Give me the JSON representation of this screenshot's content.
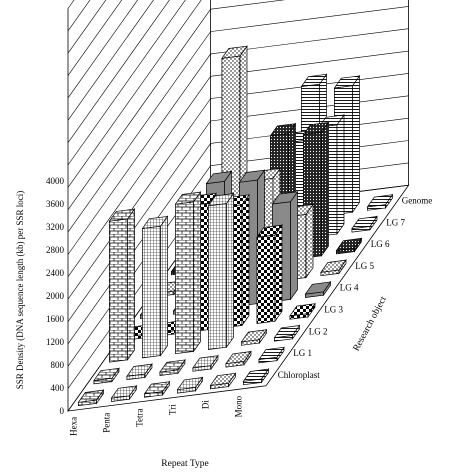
{
  "chart_data": {
    "type": "bar",
    "subtype": "3d-bar",
    "ylabel": "SSR Density (DNA sequence length (kb) per SSR loci)",
    "xlabel": "Repeat Type",
    "zlabel": "Research object",
    "ylim": [
      0,
      4000
    ],
    "yticks": [
      "0",
      "400",
      "800",
      "1200",
      "1600",
      "2000",
      "2400",
      "2800",
      "3200",
      "3600",
      "4000"
    ],
    "categories": [
      "Hexa",
      "Penta",
      "Tetra",
      "Tri",
      "Di",
      "Mono"
    ],
    "series": [
      {
        "name": "Chloroplast",
        "values": [
          0,
          0,
          0,
          0,
          0,
          0
        ]
      },
      {
        "name": "LG 1",
        "values": [
          0,
          0,
          0,
          0,
          0,
          0
        ]
      },
      {
        "name": "LG 2",
        "values": [
          2450,
          2250,
          2600,
          2500,
          0,
          0
        ]
      },
      {
        "name": "LG 3",
        "values": [
          0,
          0,
          2200,
          2100,
          1500,
          0
        ]
      },
      {
        "name": "LG 4",
        "values": [
          0,
          0,
          2200,
          2150,
          1700,
          0
        ]
      },
      {
        "name": "LG 5",
        "values": [
          0,
          0,
          4000,
          1800,
          1100,
          0
        ]
      },
      {
        "name": "LG 6",
        "values": [
          0,
          0,
          0,
          2200,
          2150,
          0
        ]
      },
      {
        "name": "LG 7",
        "values": [
          0,
          0,
          0,
          1700,
          1900,
          0
        ]
      },
      {
        "name": "Genome",
        "values": [
          0,
          0,
          0,
          2300,
          2200,
          0
        ]
      }
    ],
    "grid": true,
    "legend": "none"
  },
  "colors": {
    "axis": "#000000",
    "grid": "#000000",
    "face": "#ffffff"
  }
}
